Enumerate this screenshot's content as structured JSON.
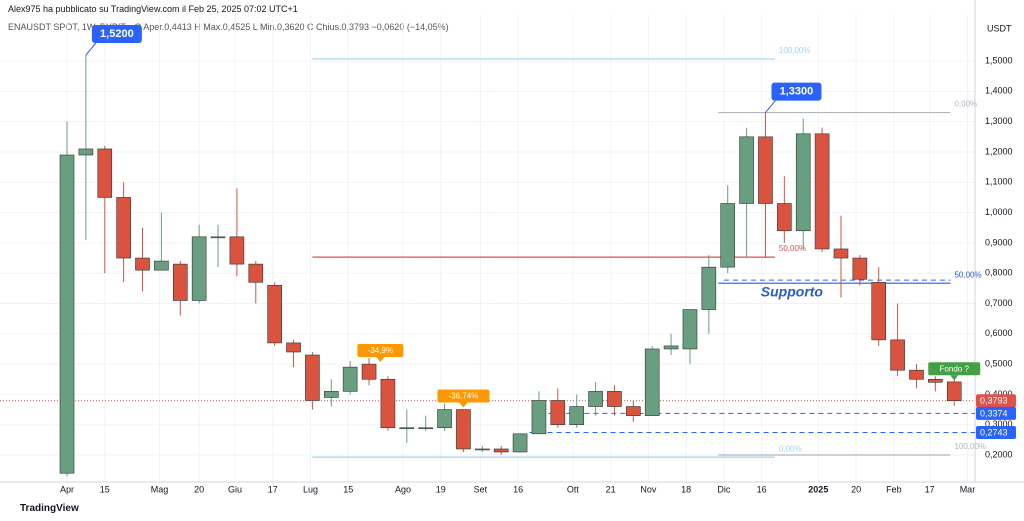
{
  "header": {
    "publisher": "Alex975 ha pubblicato su TradingView.com il Feb 25, 2025 07:02 UTC+1"
  },
  "chart_data": {
    "type": "candlestick",
    "symbol": "ENAUSDT SPOT, 1W, BYBIT",
    "ohlc_legend": "O Aper.0,4413  H Max.0,4525  L Min.0,3620  C Chius.0,3793  −0,0620 (−14,05%)",
    "y_unit": "USDT",
    "up_color": "#6a9e80",
    "down_color": "#d9533f",
    "open": [
      0.14,
      1.19,
      1.21,
      1.05,
      0.85,
      0.81,
      0.83,
      0.71,
      0.92,
      0.92,
      0.83,
      0.76,
      0.57,
      0.53,
      0.39,
      0.41,
      0.5,
      0.45,
      0.29,
      0.29,
      0.29,
      0.35,
      0.22,
      0.22,
      0.21,
      0.27,
      0.38,
      0.3,
      0.36,
      0.41,
      0.36,
      0.33,
      0.55,
      0.55,
      0.68,
      0.82,
      1.03,
      1.25,
      1.03,
      0.94,
      1.26,
      0.88,
      0.85,
      0.77,
      0.58,
      0.48,
      0.45,
      0.4413
    ],
    "high": [
      1.3,
      1.52,
      1.22,
      1.1,
      0.95,
      1.0,
      0.84,
      0.96,
      0.96,
      1.08,
      0.84,
      0.77,
      0.58,
      0.54,
      0.45,
      0.51,
      0.52,
      0.46,
      0.35,
      0.33,
      0.37,
      0.35,
      0.23,
      0.23,
      0.27,
      0.41,
      0.42,
      0.4,
      0.44,
      0.43,
      0.38,
      0.56,
      0.6,
      0.68,
      0.86,
      1.09,
      1.28,
      1.33,
      1.12,
      1.31,
      1.28,
      0.99,
      0.86,
      0.82,
      0.7,
      0.5,
      0.46,
      0.4525
    ],
    "low": [
      0.13,
      0.91,
      0.8,
      0.77,
      0.74,
      0.81,
      0.66,
      0.7,
      0.82,
      0.79,
      0.7,
      0.56,
      0.49,
      0.35,
      0.36,
      0.4,
      0.43,
      0.28,
      0.24,
      0.28,
      0.28,
      0.21,
      0.21,
      0.2,
      0.21,
      0.27,
      0.29,
      0.29,
      0.33,
      0.33,
      0.31,
      0.33,
      0.53,
      0.5,
      0.6,
      0.8,
      0.85,
      0.85,
      0.9,
      0.88,
      0.87,
      0.72,
      0.76,
      0.56,
      0.46,
      0.42,
      0.41,
      0.362
    ],
    "close": [
      1.19,
      1.21,
      1.05,
      0.85,
      0.81,
      0.84,
      0.71,
      0.92,
      0.92,
      0.83,
      0.77,
      0.57,
      0.54,
      0.38,
      0.41,
      0.49,
      0.45,
      0.29,
      0.29,
      0.29,
      0.35,
      0.22,
      0.22,
      0.21,
      0.27,
      0.38,
      0.3,
      0.36,
      0.41,
      0.36,
      0.33,
      0.55,
      0.56,
      0.68,
      0.82,
      1.03,
      1.25,
      1.03,
      0.94,
      1.26,
      0.88,
      0.85,
      0.78,
      0.58,
      0.48,
      0.45,
      0.44,
      0.3793
    ],
    "xlim": [
      -3.55,
      48.1
    ],
    "xticks": [
      {
        "value": 0,
        "label": "Apr"
      },
      {
        "value": 2,
        "label": "15"
      },
      {
        "value": 4.9,
        "label": "Mag"
      },
      {
        "value": 7,
        "label": "20"
      },
      {
        "value": 8.9,
        "label": "Giu"
      },
      {
        "value": 10.9,
        "label": "17"
      },
      {
        "value": 12.9,
        "label": "Lug"
      },
      {
        "value": 14.9,
        "label": "15"
      },
      {
        "value": 17.8,
        "label": "Ago"
      },
      {
        "value": 19.8,
        "label": "19"
      },
      {
        "value": 21.9,
        "label": "Set"
      },
      {
        "value": 23.9,
        "label": "16"
      },
      {
        "value": 26.8,
        "label": "Ott"
      },
      {
        "value": 28.8,
        "label": "21"
      },
      {
        "value": 30.8,
        "label": "Nov"
      },
      {
        "value": 32.8,
        "label": "18"
      },
      {
        "value": 34.8,
        "label": "Dic"
      },
      {
        "value": 36.8,
        "label": "16"
      },
      {
        "value": 39.8,
        "label": "2025"
      },
      {
        "value": 41.8,
        "label": "20"
      },
      {
        "value": 43.8,
        "label": "Feb"
      },
      {
        "value": 45.7,
        "label": "17"
      },
      {
        "value": 47.7,
        "label": "Mar"
      }
    ],
    "ylim": [
      0.111,
      1.652
    ],
    "yticks": [
      {
        "value": 0.2,
        "label": "0,2000"
      },
      {
        "value": 0.3,
        "label": "0,3000"
      },
      {
        "value": 0.4,
        "label": "0,4000"
      },
      {
        "value": 0.5,
        "label": "0,5000"
      },
      {
        "value": 0.6,
        "label": "0,6000"
      },
      {
        "value": 0.7,
        "label": "0,7000"
      },
      {
        "value": 0.8,
        "label": "0,8000"
      },
      {
        "value": 0.9,
        "label": "0,9000"
      },
      {
        "value": 1.0,
        "label": "1,0000"
      },
      {
        "value": 1.1,
        "label": "1,1000"
      },
      {
        "value": 1.2,
        "label": "1,2000"
      },
      {
        "value": 1.3,
        "label": "1,3000"
      },
      {
        "value": 1.4,
        "label": "1,4000"
      },
      {
        "value": 1.5,
        "label": "1,5000"
      }
    ],
    "grid": true,
    "levels": [
      {
        "value": 1.507,
        "x": [
          13,
          37.5
        ],
        "color": "#9fd6ea",
        "label": "100,00%"
      },
      {
        "value": 0.853,
        "x": [
          13,
          37.5
        ],
        "color": "#e0514a",
        "label": "50,00%"
      },
      {
        "value": 0.193,
        "x": [
          13,
          37.5
        ],
        "color": "#9fd6ea",
        "label": "0,00%"
      },
      {
        "value": 1.33,
        "x": [
          34.5,
          46.8
        ],
        "color": "#b2b5be",
        "label": "0,00%"
      },
      {
        "value": 0.767,
        "x": [
          34.5,
          46.8
        ],
        "color": "#2a5bd7",
        "label": "50,00%"
      },
      {
        "value": 0.2,
        "x": [
          34.5,
          46.8
        ],
        "color": "#b2b5be",
        "label": "100,00%"
      }
    ],
    "price_labels": [
      {
        "value": 0.3793,
        "label": "0,3793",
        "color": "#e0514a",
        "x": -3.55,
        "dashed": false
      },
      {
        "value": 0.3374,
        "label": "0,3374",
        "color": "#2962ff",
        "x": 25.5,
        "dashed": true
      },
      {
        "value": 0.2743,
        "label": "0,2743",
        "color": "#2962ff",
        "x": 24.5,
        "dashed": true
      }
    ],
    "dashed_level": {
      "value": 0.777,
      "x": [
        34.8,
        46.8
      ],
      "color": "#2962ff"
    },
    "callouts": [
      {
        "label": "1,5200",
        "value": 1.52,
        "x": 1,
        "color": "#2962ff"
      },
      {
        "label": "1,3300",
        "value": 1.33,
        "x": 37,
        "color": "#2962ff"
      },
      {
        "label": "-34,9%",
        "at": [
          16.6,
          0.52
        ],
        "color": "#ff9800"
      },
      {
        "label": "-36,74%",
        "at": [
          21,
          0.37
        ],
        "color": "#ff9800"
      },
      {
        "label": "Fondo ?",
        "at": [
          47,
          0.46
        ],
        "color": "#43a047"
      }
    ],
    "note": {
      "label": "Supporto",
      "at": [
        38.4,
        0.735
      ],
      "color": "#2a5bd7"
    }
  },
  "footer": {
    "brand": "TradingView"
  }
}
